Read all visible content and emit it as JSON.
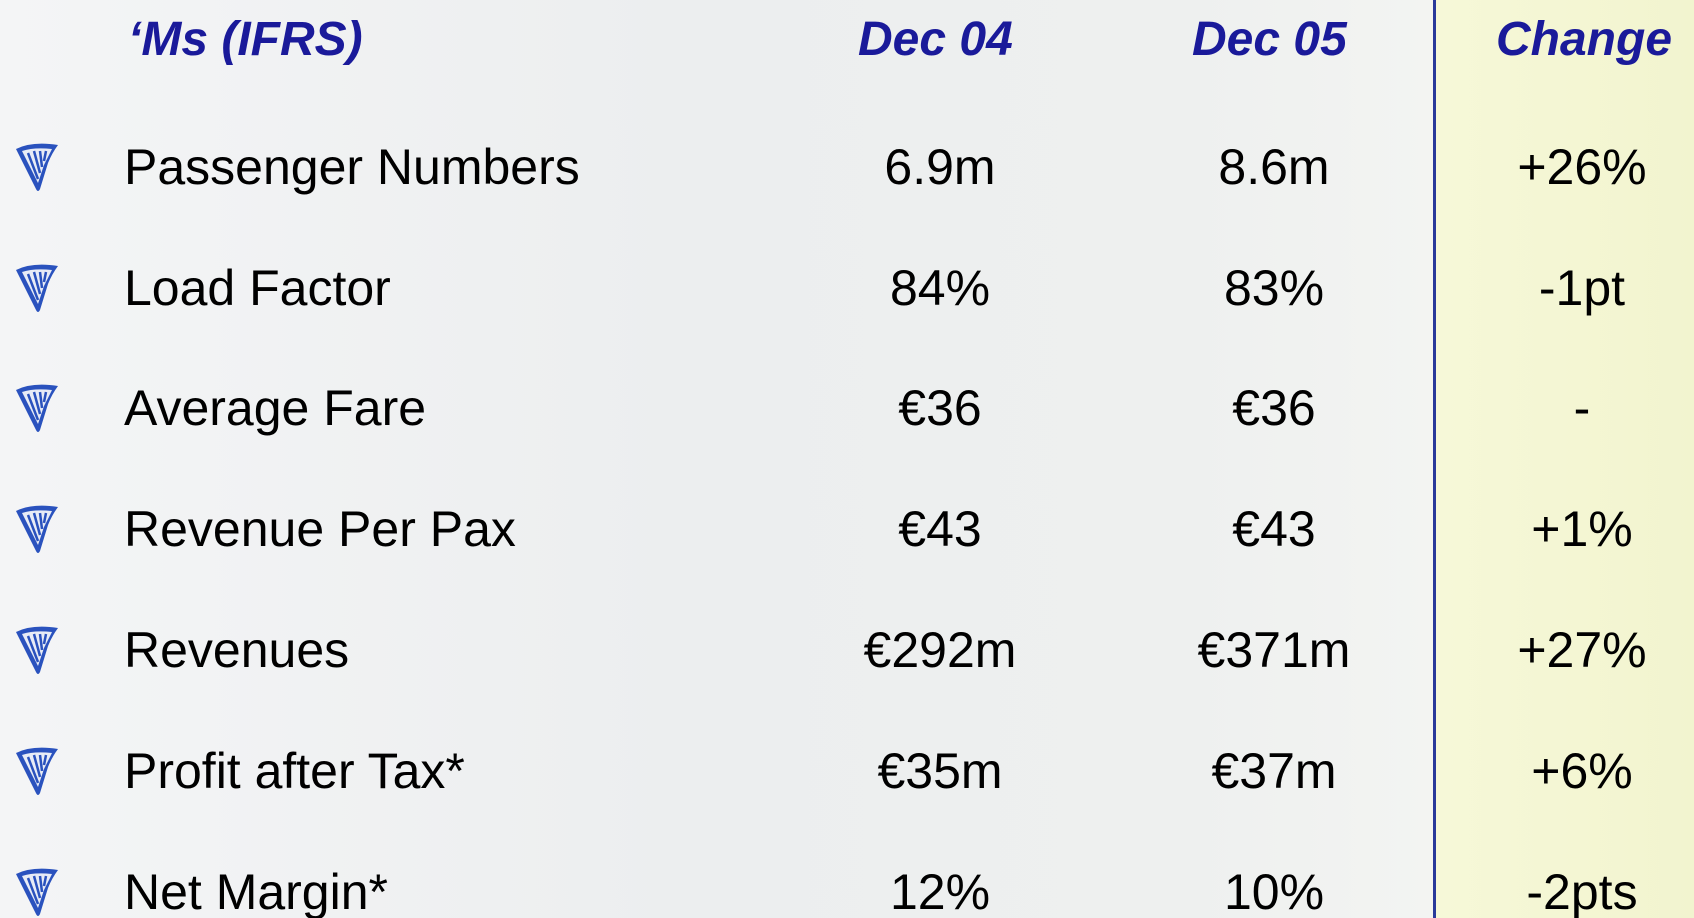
{
  "header": {
    "label": "‘Ms (IFRS)",
    "col1": "Dec 04",
    "col2": "Dec 05",
    "col3": "Change"
  },
  "table": {
    "rows": [
      [
        "Passenger Numbers",
        "6.9m",
        "8.6m",
        "+26%"
      ],
      [
        "Load Factor",
        "84%",
        "83%",
        "-1pt"
      ],
      [
        "Average Fare",
        "€36",
        "€36",
        "-"
      ],
      [
        "Revenue Per Pax",
        "€43",
        "€43",
        "+1%"
      ],
      [
        "Revenues",
        "€292m",
        "€371m",
        "+27%"
      ],
      [
        "Profit after Tax*",
        "€35m",
        "€37m",
        "+6%"
      ],
      [
        "Net Margin*",
        "12%",
        "10%",
        "-2pts"
      ]
    ]
  }
}
